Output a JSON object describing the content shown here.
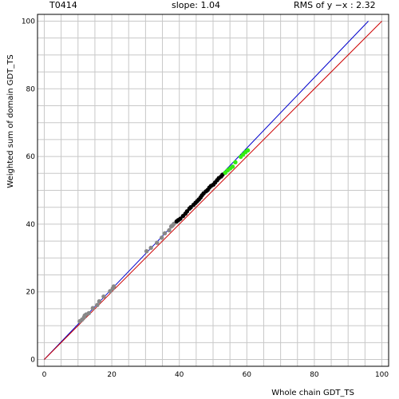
{
  "header": {
    "target": "T0414",
    "slope_label": "slope: 1.04",
    "rms_label": "RMS of  y −x : 2.32"
  },
  "chart_data": {
    "type": "scatter",
    "title": "",
    "xlabel": "Whole chain GDT_TS",
    "ylabel": "Weighted sum of domain GDT_TS",
    "xlim": [
      -2,
      102
    ],
    "ylim": [
      -2,
      102
    ],
    "grid": true,
    "x_ticks": [
      0,
      20,
      40,
      60,
      80,
      100
    ],
    "y_ticks": [
      0,
      20,
      40,
      60,
      80,
      100
    ],
    "lines": [
      {
        "name": "fit",
        "color": "#0000cc",
        "x": [
          0,
          96
        ],
        "y": [
          0,
          100
        ]
      },
      {
        "name": "y = x",
        "color": "#cc0000",
        "x": [
          0,
          100
        ],
        "y": [
          0,
          100
        ]
      }
    ],
    "series": [
      {
        "color": "#888888",
        "points": [
          [
            10.5,
            11.3
          ],
          [
            11.2,
            11.8
          ],
          [
            11.8,
            12.5
          ],
          [
            12.0,
            13.0
          ],
          [
            12.4,
            13.3
          ],
          [
            13.2,
            13.7
          ],
          [
            14.4,
            15.2
          ],
          [
            15.7,
            16.1
          ],
          [
            16.3,
            17.2
          ],
          [
            17.6,
            18.6
          ],
          [
            19.5,
            20.2
          ],
          [
            20.3,
            21.0
          ],
          [
            20.6,
            21.6
          ],
          [
            30.3,
            32.0
          ],
          [
            31.6,
            33.0
          ],
          [
            33.4,
            34.5
          ],
          [
            34.8,
            36.0
          ],
          [
            35.7,
            37.3
          ],
          [
            37.0,
            38.2
          ],
          [
            37.6,
            39.3
          ],
          [
            38.0,
            39.6
          ],
          [
            38.4,
            40.1
          ]
        ]
      },
      {
        "color": "#000000",
        "points": [
          [
            39.2,
            40.8
          ],
          [
            39.7,
            41.2
          ],
          [
            40.3,
            41.6
          ],
          [
            41.1,
            42.4
          ],
          [
            41.8,
            43.1
          ],
          [
            42.3,
            43.8
          ],
          [
            43.0,
            44.6
          ],
          [
            43.4,
            45.0
          ],
          [
            44.2,
            45.7
          ],
          [
            44.8,
            46.3
          ],
          [
            45.3,
            46.8
          ],
          [
            45.8,
            47.3
          ],
          [
            46.3,
            47.9
          ],
          [
            46.7,
            48.5
          ],
          [
            47.2,
            49.1
          ],
          [
            47.9,
            49.7
          ],
          [
            48.4,
            50.1
          ],
          [
            48.9,
            50.8
          ],
          [
            49.4,
            51.3
          ],
          [
            50.1,
            51.7
          ],
          [
            50.6,
            52.3
          ],
          [
            51.2,
            53.0
          ],
          [
            51.7,
            53.6
          ],
          [
            52.4,
            54.1
          ],
          [
            52.8,
            54.6
          ]
        ]
      },
      {
        "color": "#33ee11",
        "points": [
          [
            53.6,
            55.2
          ],
          [
            54.3,
            55.9
          ],
          [
            55.1,
            56.5
          ],
          [
            55.8,
            57.0
          ],
          [
            56.6,
            58.3
          ],
          [
            58.2,
            59.9
          ],
          [
            58.9,
            60.6
          ],
          [
            59.6,
            61.3
          ],
          [
            60.3,
            61.8
          ]
        ]
      }
    ]
  }
}
